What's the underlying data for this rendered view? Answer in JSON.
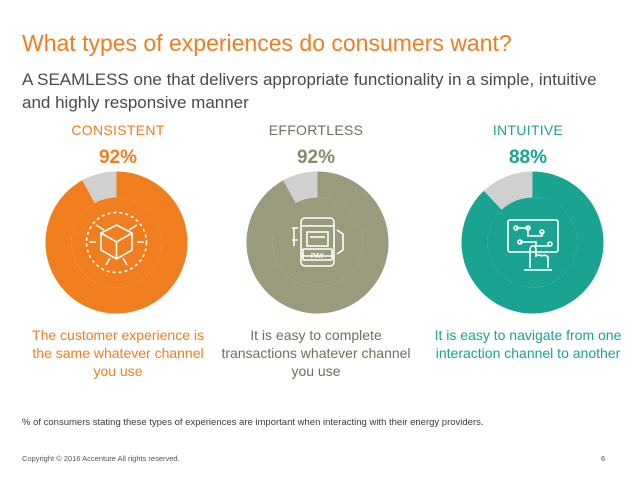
{
  "header": {
    "title": "What types of experiences do consumers want?",
    "subtitle": "A SEAMLESS one that delivers appropriate functionality in a simple, intuitive and highly responsive manner"
  },
  "chart_data": {
    "type": "pie",
    "charts": [
      {
        "category": "CONSISTENT",
        "value_label": "92%",
        "value": 92,
        "description": "The customer experience is the same whatever channel you use",
        "color": "#f07d1e",
        "icon": "cube-icon"
      },
      {
        "category": "EFFORTLESS",
        "value_label": "92%",
        "value": 92,
        "description": "It is easy to complete transactions whatever channel you use",
        "color": "#9a9a7c",
        "icon": "mobile-pay-icon"
      },
      {
        "category": "INTUITIVE",
        "value_label": "88%",
        "value": 88,
        "description": "It is easy to navigate from one interaction channel to another",
        "color": "#1aa391",
        "icon": "touch-screen-icon"
      }
    ],
    "remainder_color": "#d0d0d0"
  },
  "footer": {
    "note": "% of consumers stating these types of experiences are important when interacting with their energy providers.",
    "copyright": "Copyright © 2016 Accenture  All rights reserved.",
    "page": "6"
  }
}
